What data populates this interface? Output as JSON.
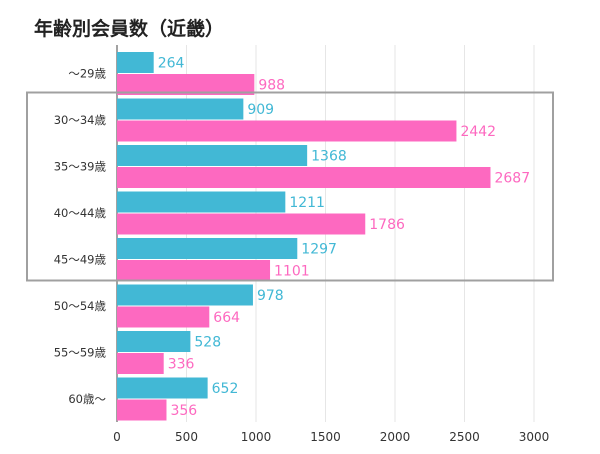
{
  "chart_data": {
    "type": "bar",
    "orientation": "horizontal",
    "title": "年齢別会員数（近畿）",
    "categories": [
      "～29歳",
      "30～34歳",
      "35～39歳",
      "40～44歳",
      "45～49歳",
      "50～54歳",
      "55～59歳",
      "60歳～"
    ],
    "series": [
      {
        "name": "blue",
        "color": "#42b8d5",
        "values": [
          264,
          909,
          1368,
          1211,
          1297,
          978,
          528,
          652
        ]
      },
      {
        "name": "pink",
        "color": "#fd69c0",
        "values": [
          988,
          2442,
          2687,
          1786,
          1101,
          664,
          336,
          356
        ]
      }
    ],
    "xlim": [
      0,
      3000
    ],
    "xticks": [
      0,
      500,
      1000,
      1500,
      2000,
      2500,
      3000
    ],
    "grid": true,
    "highlight": {
      "from_category": "30～34歳",
      "to_category": "45～49歳",
      "color": "#a0a0a0"
    }
  }
}
